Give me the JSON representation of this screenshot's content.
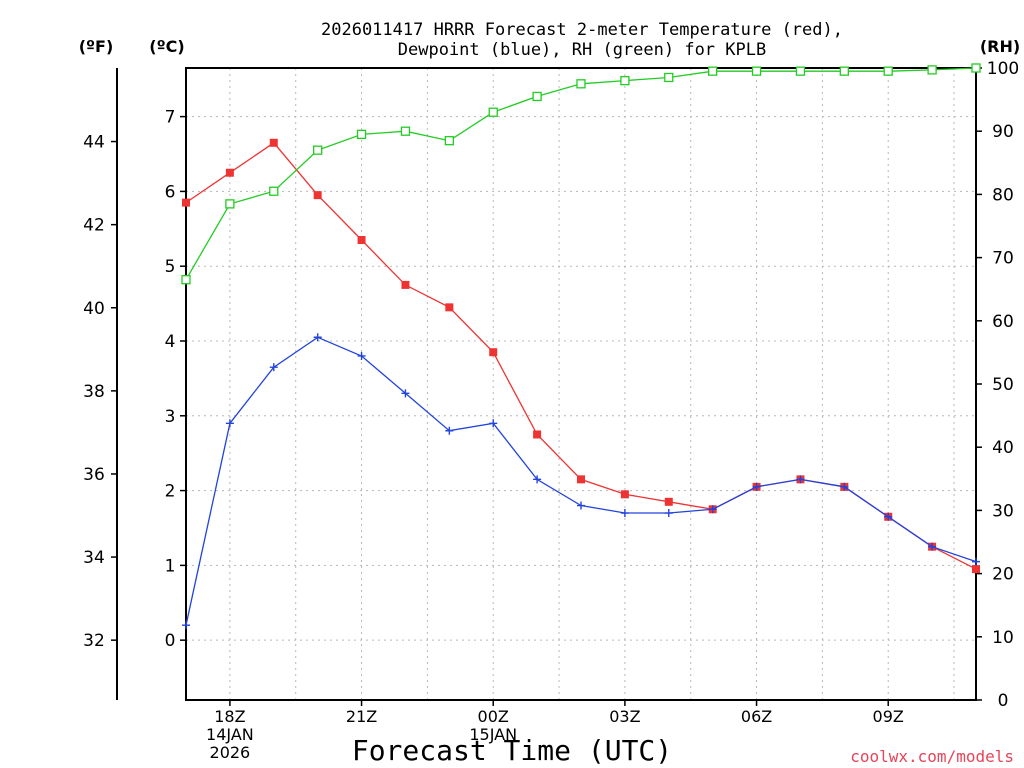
{
  "chart_data": {
    "type": "line",
    "title_line1": "2026011417 HRRR Forecast 2-meter Temperature (red),",
    "title_line2": "Dewpoint (blue), RH (green) for KPLB",
    "xlabel": "Forecast Time (UTC)",
    "unit_f": "(ºF)",
    "unit_c": "(ºC)",
    "unit_rh": "(RH)",
    "credit": "coolwx.com/models",
    "x_hours": [
      17,
      18,
      19,
      20,
      21,
      22,
      23,
      24,
      25,
      26,
      27,
      28,
      29,
      30,
      31,
      32,
      33,
      34,
      35
    ],
    "xlim": [
      17,
      35
    ],
    "x_ticks": [
      {
        "hour": 18,
        "lines": [
          "18Z",
          "14JAN",
          "2026"
        ]
      },
      {
        "hour": 21,
        "lines": [
          "21Z"
        ]
      },
      {
        "hour": 24,
        "lines": [
          "00Z",
          "15JAN"
        ]
      },
      {
        "hour": 27,
        "lines": [
          "03Z"
        ]
      },
      {
        "hour": 30,
        "lines": [
          "06Z"
        ]
      },
      {
        "hour": 33,
        "lines": [
          "09Z"
        ]
      }
    ],
    "grid_hours": [
      18,
      19.5,
      21,
      22.5,
      24,
      25.5,
      27,
      28.5,
      30,
      31.5,
      33,
      34.5
    ],
    "ylim_c": [
      -0.8,
      7.65
    ],
    "celsius_ticks": [
      "0",
      "1",
      "2",
      "3",
      "4",
      "5",
      "6",
      "7"
    ],
    "fahrenheit_ticks": [
      "32",
      "34",
      "36",
      "38",
      "40",
      "42",
      "44"
    ],
    "rh_ylim": [
      0,
      100
    ],
    "rh_ticks": [
      "0",
      "10",
      "20",
      "30",
      "40",
      "50",
      "60",
      "70",
      "80",
      "90",
      "100"
    ],
    "series": [
      {
        "name": "Temperature",
        "unit": "C",
        "color": "#ee3333",
        "marker": "filled-square",
        "values": [
          5.85,
          6.25,
          6.65,
          5.95,
          5.35,
          4.75,
          4.45,
          3.85,
          2.75,
          2.15,
          1.95,
          1.85,
          1.75,
          2.05,
          2.15,
          2.05,
          1.65,
          1.25,
          0.95
        ]
      },
      {
        "name": "Dewpoint",
        "unit": "C",
        "color": "#2244dd",
        "marker": "plus",
        "values": [
          0.2,
          2.9,
          3.65,
          4.05,
          3.8,
          3.3,
          2.8,
          2.9,
          2.15,
          1.8,
          1.7,
          1.7,
          1.75,
          2.05,
          2.15,
          2.05,
          1.65,
          1.25,
          1.05
        ]
      },
      {
        "name": "RH",
        "unit": "%",
        "color": "#22cc22",
        "marker": "open-square",
        "values": [
          66.5,
          78.5,
          80.5,
          87.0,
          89.5,
          90.0,
          88.5,
          93.0,
          95.5,
          97.5,
          98.0,
          98.5,
          99.5,
          99.5,
          99.5,
          99.5,
          99.5,
          99.7,
          100.0
        ]
      }
    ]
  }
}
